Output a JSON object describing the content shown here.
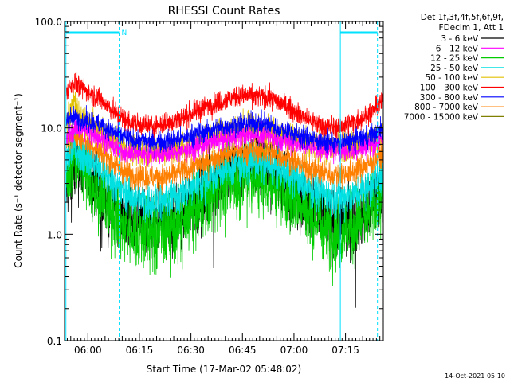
{
  "chart_data": {
    "type": "line",
    "title": "RHESSI Count Rates",
    "xlabel": "Start Time (17-Mar-02 05:48:02)",
    "ylabel": "Count Rate (s⁻¹ detector segment⁻¹)",
    "yscale": "log",
    "ylim": [
      0.1,
      100
    ],
    "xlim_minutes": [
      5.2,
      98
    ],
    "y_ticks": [
      {
        "value": 0.1,
        "label": "0.1"
      },
      {
        "value": 1,
        "label": "1.0"
      },
      {
        "value": 10,
        "label": "10.0"
      },
      {
        "value": 100,
        "label": "100.0"
      }
    ],
    "x_ticks": [
      {
        "minute": 12,
        "label": "06:00"
      },
      {
        "minute": 27,
        "label": "06:15"
      },
      {
        "minute": 42,
        "label": "06:30"
      },
      {
        "minute": 57,
        "label": "06:45"
      },
      {
        "minute": 72,
        "label": "07:00"
      },
      {
        "minute": 87,
        "label": "07:15"
      }
    ],
    "legend_header": [
      "Det 1f,3f,4f,5f,6f,9f,",
      "FDecim 1, Att 1"
    ],
    "night_markers": {
      "label": "N",
      "segments": [
        [
          5.6,
          21.1
        ],
        [
          85.5,
          96.3
        ]
      ],
      "color": "#00e0ff"
    },
    "series": [
      {
        "name": "3 - 6 keV",
        "color": "#000000",
        "x": [
          5.6,
          8,
          10,
          15,
          21,
          25,
          30,
          35,
          40,
          45,
          50,
          55,
          60,
          65,
          70,
          75,
          80,
          85,
          90,
          95,
          98
        ],
        "y": [
          2.7,
          3.8,
          4.5,
          2.8,
          1.6,
          1.3,
          1.25,
          1.3,
          1.6,
          2.3,
          3.3,
          4.3,
          4.8,
          4.3,
          3.2,
          2.1,
          1.4,
          1.2,
          1.4,
          2.0,
          2.7
        ]
      },
      {
        "name": "6 - 12 keV",
        "color": "#ff00ff",
        "x": [
          5.6,
          8,
          10,
          15,
          21,
          25,
          30,
          35,
          40,
          45,
          50,
          55,
          60,
          65,
          70,
          75,
          80,
          85,
          90,
          95,
          98
        ],
        "y": [
          8.0,
          9.5,
          10.0,
          8.3,
          6.2,
          5.8,
          5.6,
          5.7,
          6.1,
          6.8,
          7.6,
          8.3,
          8.6,
          8.3,
          7.6,
          6.8,
          6.3,
          6.0,
          6.2,
          7.0,
          8.0
        ]
      },
      {
        "name": "12 - 25 keV",
        "color": "#00cc00",
        "x": [
          5.6,
          8,
          10,
          15,
          21,
          25,
          30,
          35,
          40,
          45,
          50,
          55,
          60,
          65,
          70,
          75,
          80,
          85,
          90,
          95,
          98
        ],
        "y": [
          3.2,
          6.0,
          4.5,
          2.5,
          1.3,
          1.05,
          1.0,
          1.05,
          1.3,
          1.9,
          2.6,
          3.2,
          3.4,
          3.1,
          2.5,
          1.7,
          1.2,
          1.0,
          1.2,
          1.8,
          2.5
        ]
      },
      {
        "name": "25 - 50 keV",
        "color": "#00e0e0",
        "x": [
          5.6,
          8,
          10,
          15,
          21,
          25,
          30,
          35,
          40,
          45,
          50,
          55,
          60,
          65,
          70,
          75,
          80,
          85,
          90,
          95,
          98
        ],
        "y": [
          5.0,
          6.5,
          6.0,
          4.3,
          2.7,
          2.2,
          2.0,
          2.1,
          2.5,
          3.1,
          3.8,
          4.5,
          4.8,
          4.5,
          3.8,
          3.0,
          2.4,
          2.2,
          2.4,
          3.0,
          3.8
        ]
      },
      {
        "name": "50 - 100 keV",
        "color": "#e0c000",
        "x": [
          5.6,
          8,
          10,
          15,
          21,
          25,
          30,
          35,
          40,
          45,
          50,
          55,
          60,
          65,
          70,
          75,
          80,
          85,
          90,
          95,
          98
        ],
        "y": [
          11.0,
          18.0,
          12.0,
          9.5,
          6.8,
          6.2,
          6.0,
          6.1,
          6.6,
          7.6,
          8.7,
          9.6,
          9.9,
          9.5,
          8.4,
          7.2,
          6.6,
          6.5,
          6.8,
          7.8,
          9.0
        ]
      },
      {
        "name": "100 - 300 keV",
        "color": "#ff0000",
        "x": [
          5.6,
          8,
          10,
          15,
          21,
          25,
          30,
          35,
          40,
          45,
          50,
          55,
          60,
          65,
          70,
          75,
          80,
          85,
          90,
          95,
          98
        ],
        "y": [
          22.0,
          27.0,
          24.0,
          19.0,
          13.0,
          11.0,
          10.5,
          11.0,
          12.5,
          15.0,
          17.5,
          19.5,
          20.0,
          19.0,
          16.0,
          12.5,
          10.5,
          10.0,
          11.5,
          14.5,
          18.0
        ]
      },
      {
        "name": "300 - 800 keV",
        "color": "#0000ff",
        "x": [
          5.6,
          8,
          10,
          15,
          21,
          25,
          30,
          35,
          40,
          45,
          50,
          55,
          60,
          65,
          70,
          75,
          80,
          85,
          90,
          95,
          98
        ],
        "y": [
          12.0,
          12.5,
          12.0,
          11.0,
          8.5,
          7.7,
          7.4,
          7.5,
          8.0,
          9.0,
          10.0,
          10.7,
          11.0,
          10.5,
          9.4,
          8.2,
          7.4,
          7.2,
          7.6,
          8.6,
          10.0
        ]
      },
      {
        "name": "800 - 7000 keV",
        "color": "#ff8000",
        "x": [
          5.6,
          8,
          10,
          15,
          21,
          25,
          30,
          35,
          40,
          45,
          50,
          55,
          60,
          65,
          70,
          75,
          80,
          85,
          90,
          95,
          98
        ],
        "y": [
          7.5,
          8.5,
          8.0,
          6.3,
          4.2,
          3.6,
          3.4,
          3.5,
          3.9,
          4.6,
          5.4,
          6.0,
          6.2,
          5.9,
          5.2,
          4.3,
          3.8,
          3.6,
          3.9,
          4.8,
          5.8
        ]
      },
      {
        "name": "7000 - 15000 keV",
        "color": "#808000",
        "x": [],
        "y": []
      }
    ]
  },
  "footer": {
    "timestamp": "14-Oct-2021 05:10"
  }
}
